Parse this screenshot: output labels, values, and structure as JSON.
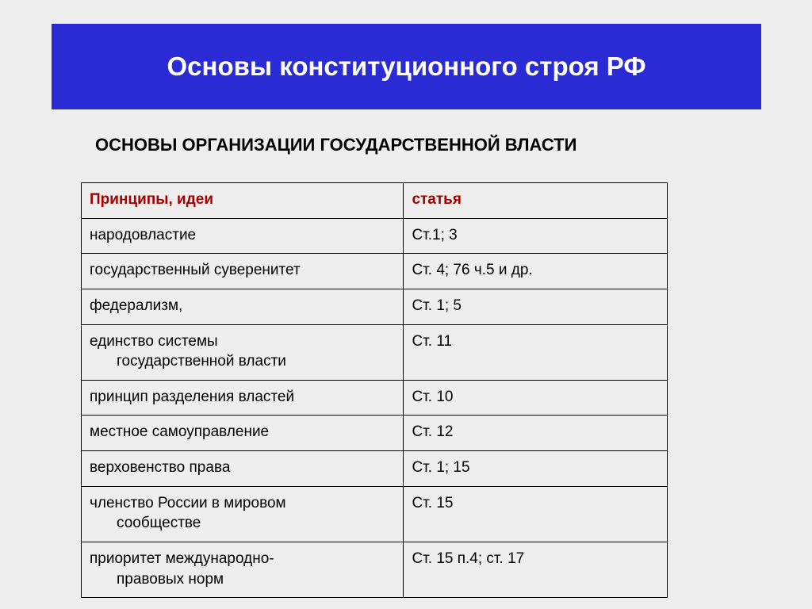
{
  "colors": {
    "title_bar_bg": "#2a2bd4",
    "title_text": "#ffffff",
    "background": "#eeeeee",
    "header_text": "#a40000",
    "body_text": "#000000",
    "border": "#000000"
  },
  "typography": {
    "title_fontsize": 33,
    "subheading_fontsize": 22,
    "cell_fontsize": 19,
    "font_family": "Arial"
  },
  "title": "Основы конституционного строя РФ",
  "subheading": "ОСНОВЫ ОРГАНИЗАЦИИ ГОСУДАРСТВЕННОЙ ВЛАСТИ",
  "table": {
    "type": "table",
    "col_widths": [
      "55%",
      "45%"
    ],
    "columns": [
      "Принципы, идеи",
      "статья"
    ],
    "rows": [
      {
        "c1": "народовластие",
        "c1_cont": "",
        "c2": "Ст.1; 3"
      },
      {
        "c1": "государственный суверенитет",
        "c1_cont": "",
        "c2": " Ст. 4; 76 ч.5 и др."
      },
      {
        "c1": "федерализм,",
        "c1_cont": "",
        "c2": "Ст. 1; 5"
      },
      {
        "c1": "единство системы",
        "c1_cont": "государственной власти",
        "c2": "Ст. 11"
      },
      {
        "c1": "принцип разделения властей",
        "c1_cont": "",
        "c2": "Ст. 10"
      },
      {
        "c1": "местное самоуправление",
        "c1_cont": "",
        "c2": "Ст. 12"
      },
      {
        "c1": "верховенство права",
        "c1_cont": "",
        "c2": "Ст. 1; 15"
      },
      {
        "c1": "членство России в мировом",
        "c1_cont": "сообществе",
        "c2": "Ст. 15"
      },
      {
        "c1": "приоритет международно-",
        "c1_cont": "правовых норм",
        "c2": "Ст. 15 п.4; ст. 17"
      }
    ]
  }
}
